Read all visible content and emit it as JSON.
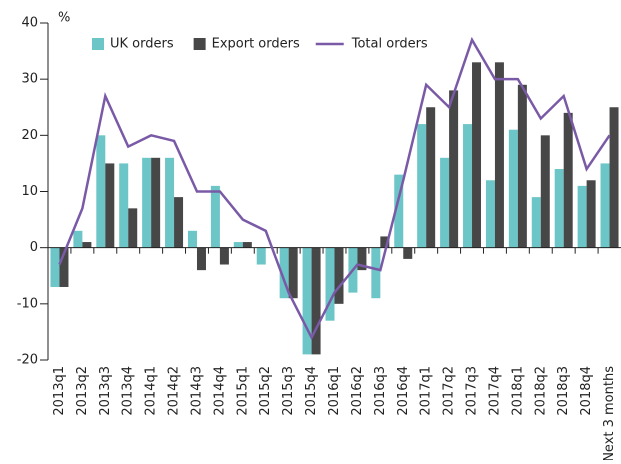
{
  "chart_data": {
    "type": "bar",
    "y_label": "%",
    "categories": [
      "2013q1",
      "2013q2",
      "2013q3",
      "2013q4",
      "2014q1",
      "2014q2",
      "2014q3",
      "2014q4",
      "2015q1",
      "2015q2",
      "2015q3",
      "2015q4",
      "2016q1",
      "2016q2",
      "2016q3",
      "2016q4",
      "2017q1",
      "2017q2",
      "2017q3",
      "2017q4",
      "2018q1",
      "2018q2",
      "2018q3",
      "2018q4",
      "Next 3 months"
    ],
    "series": [
      {
        "name": "UK orders",
        "type": "bar",
        "color": "#6cc5c6",
        "values": [
          -7,
          3,
          20,
          15,
          16,
          16,
          3,
          11,
          1,
          -3,
          -9,
          -19,
          -13,
          -8,
          -9,
          13,
          22,
          16,
          22,
          12,
          21,
          9,
          14,
          11,
          15
        ]
      },
      {
        "name": "Export orders",
        "type": "bar",
        "color": "#474747",
        "values": [
          -7,
          1,
          15,
          7,
          16,
          9,
          -4,
          -3,
          1,
          0,
          -9,
          -19,
          -10,
          -4,
          2,
          -2,
          25,
          28,
          33,
          33,
          29,
          20,
          24,
          12,
          25
        ]
      },
      {
        "name": "Total orders",
        "type": "line",
        "color": "#7a5aa6",
        "values": [
          -3,
          7,
          27,
          18,
          20,
          19,
          10,
          10,
          5,
          3,
          -8,
          -16,
          -8,
          -3,
          -4,
          12,
          29,
          25,
          37,
          30,
          30,
          23,
          27,
          14,
          20
        ]
      }
    ],
    "ylim": [
      -20,
      40
    ],
    "yticks": [
      -20,
      -10,
      0,
      10,
      20,
      30,
      40
    ],
    "legend": "top"
  }
}
